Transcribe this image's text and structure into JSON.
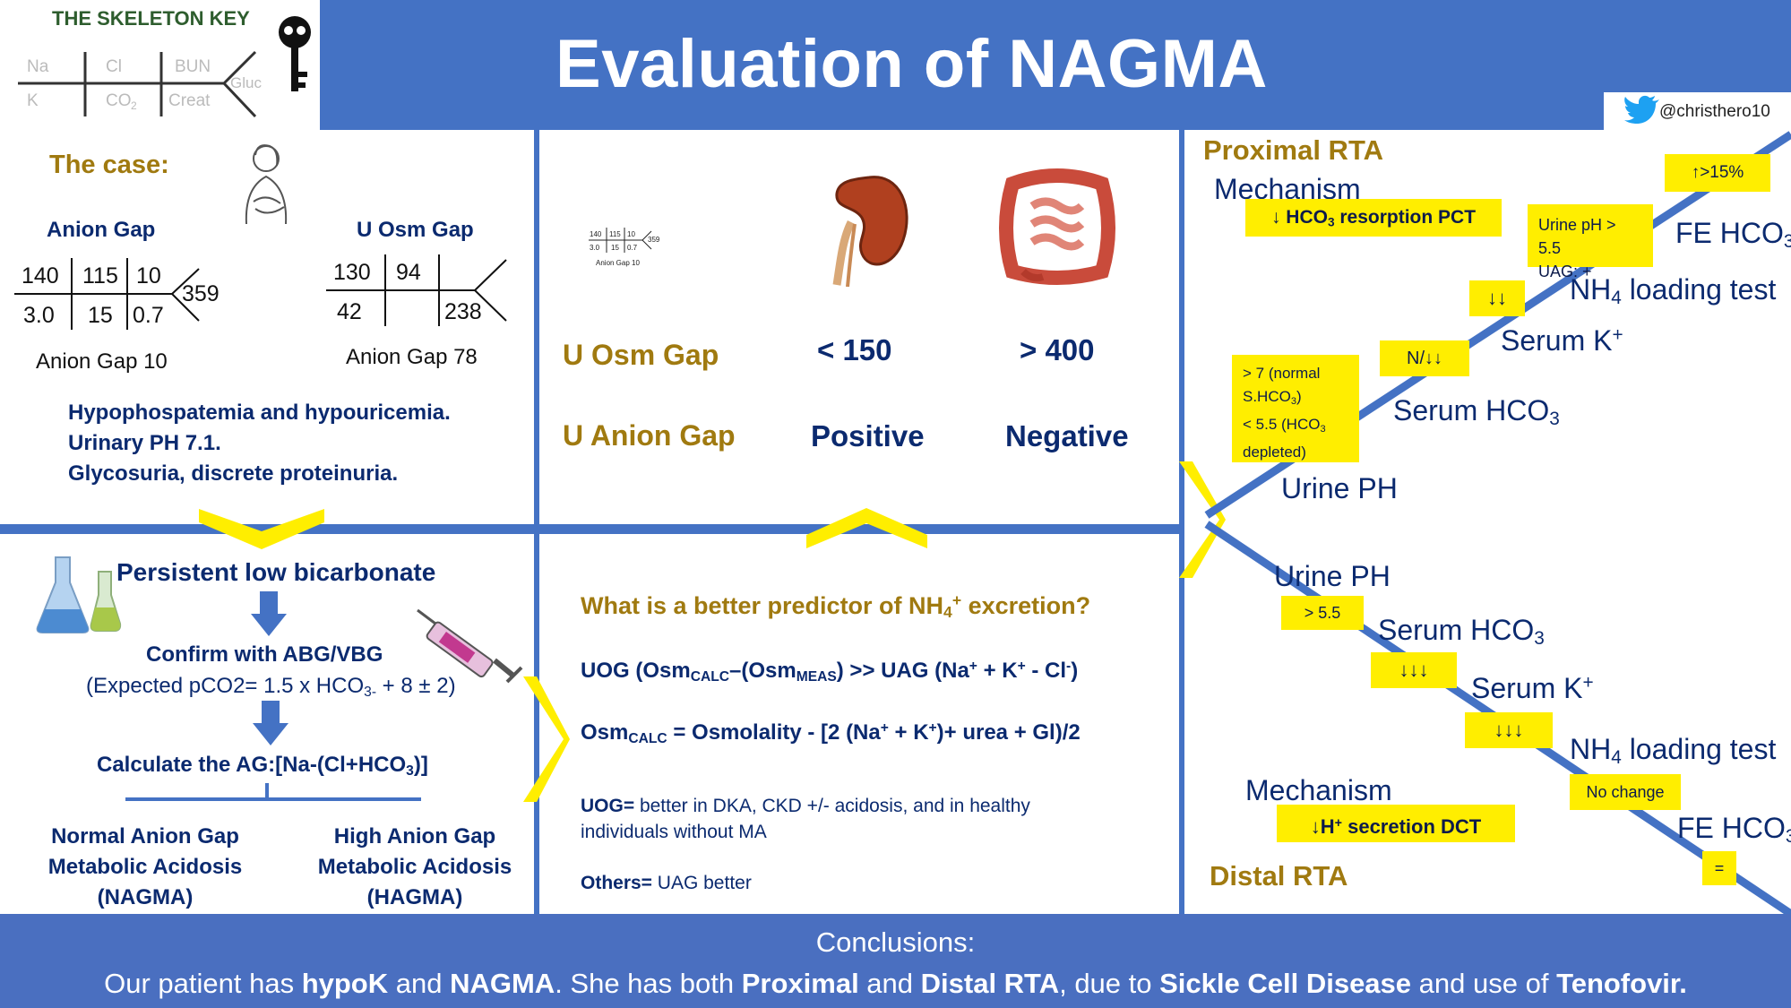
{
  "header": {
    "logo_title": "THE SKELETON KEY",
    "logo_labels": {
      "na": "Na",
      "cl": "Cl",
      "bun": "BUN",
      "k": "K",
      "co2": "CO",
      "co2_sub": "2",
      "creat": "Creat",
      "gluc": "Gluc"
    },
    "title": "Evaluation of NAGMA",
    "twitter": "@christhero10"
  },
  "case": {
    "heading": "The case:",
    "ag_heading": "Anion Gap",
    "ag_values": {
      "na": "140",
      "cl": "115",
      "bun": "10",
      "gluc": "359",
      "k": "3.0",
      "co2": "15",
      "creat": "0.7"
    },
    "ag_caption": "Anion Gap 10",
    "uosm_heading": "U Osm Gap",
    "uosm_values": {
      "a": "130",
      "b": "94",
      "c": "42",
      "d": "238"
    },
    "uosm_caption": "Anion Gap 78",
    "findings": [
      "Hypophospatemia and hypouricemia.",
      "Urinary PH 7.1.",
      "Glycosuria, discrete proteinuria."
    ]
  },
  "middle_top": {
    "uosm_label": "U Osm Gap",
    "uag_label": "U Anion Gap",
    "kidney_osm": "< 150",
    "kidney_ag": "Positive",
    "gut_osm": "> 400",
    "gut_ag": "Negative",
    "mini_caption": "Anion Gap 10",
    "mini_values": {
      "na": "140",
      "cl": "115",
      "bun": "10",
      "gluc": "359",
      "k": "3.0",
      "co2": "15",
      "creat": "0.7"
    }
  },
  "flow": {
    "step1": "Persistent low bicarbonate",
    "step2": "Confirm with ABG/VBG",
    "step2_sub": "(Expected pCO2= 1.5 x HCO",
    "step2_sub_idx": "3-",
    "step2_sub_end": " + 8 ± 2)",
    "step3_pre": "Calculate the AG:[Na-(Cl+HCO",
    "step3_idx": "3",
    "step3_end": ")]",
    "left_out": [
      "Normal Anion Gap",
      "Metabolic Acidosis",
      "(NAGMA)"
    ],
    "right_out": [
      "High Anion Gap",
      "Metabolic Acidosis",
      "(HAGMA)"
    ]
  },
  "predictor": {
    "question_pre": "What is a better predictor of NH",
    "question_sub": "4",
    "question_sup": "+",
    "question_end": " excretion?",
    "uog_formula": "UOG (Osm",
    "calc": "CALC",
    "meas": "MEAS",
    "uog_mid": "–(Osm",
    "uog_end": ") >> UAG (Na",
    "uog_tail": " + K",
    "uog_tail2": " - Cl",
    "uog_close": ")",
    "osm_pre": "Osm",
    "osm_end": " = Osmolality - [2 (Na",
    "osm_k": " + K",
    "osm_tail": ")+ urea + Gl)/2",
    "note1_bold": "UOG=",
    "note1": " better in DKA, CKD +/- acidosis, and in healthy individuals without MA",
    "note2_bold": "Others=",
    "note2": " UAG better"
  },
  "rta": {
    "proximal_title": "Proximal RTA",
    "mechanism": "Mechanism",
    "prox_mech_box": "↓ HCO",
    "prox_mech_idx": "3",
    "prox_mech_end": " resorption PCT",
    "prox_fe_box": "↑>15%",
    "prox_nh4_box_1": "Urine pH > 5.5",
    "prox_nh4_box_2": "UAG: +",
    "prox_k_box": "↓↓",
    "prox_hco3_box": "N/↓↓",
    "prox_ph_box": [
      "> 7 (normal",
      "S.HCO",
      "3",
      ")",
      "< 5.5 (HCO",
      "3",
      "",
      "depleted)"
    ],
    "fe_hco3": "FE HCO",
    "nh4_test_pre": "NH",
    "nh4_test_end": " loading test",
    "serum_k": "Serum K",
    "serum_hco3": "Serum HCO",
    "urine_ph": "Urine PH",
    "distal_title": "Distal RTA",
    "dist_ph_box": "> 5.5",
    "dist_hco3_box": "↓↓↓",
    "dist_k_box": "↓↓↓",
    "dist_nh4_box": "No change",
    "dist_mech_box": "↓H",
    "dist_mech_end": " secretion DCT",
    "dist_fe_box": "="
  },
  "footer": {
    "heading": "Conclusions:",
    "parts": [
      {
        "t": "Our patient has ",
        "b": false
      },
      {
        "t": "hypoK",
        "b": true
      },
      {
        "t": " and ",
        "b": false
      },
      {
        "t": "NAGMA",
        "b": true
      },
      {
        "t": ". She has both ",
        "b": false
      },
      {
        "t": "Proximal",
        "b": true
      },
      {
        "t": " and ",
        "b": false
      },
      {
        "t": "Distal RTA",
        "b": true
      },
      {
        "t": ", due to ",
        "b": false
      },
      {
        "t": "Sickle Cell Disease",
        "b": true
      },
      {
        "t": " and use of ",
        "b": false
      },
      {
        "t": "Tenofovir.",
        "b": true
      }
    ]
  },
  "colors": {
    "blue": "#4472c4",
    "navy": "#0b2a6f",
    "gold": "#a07a10",
    "yellow": "#ffee00",
    "footer": "#4a6fc0"
  }
}
